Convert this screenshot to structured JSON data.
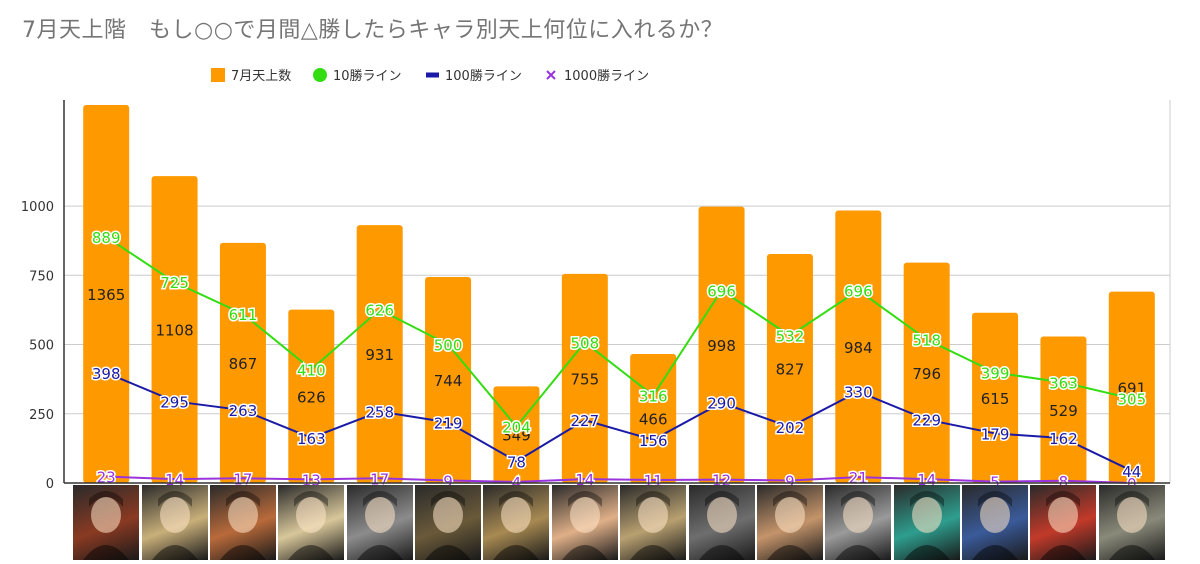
{
  "chart_data": {
    "type": "bar",
    "title": "7月天上階　もし○○で月間△勝したらキャラ別天上何位に入れるか？",
    "xlabel": "",
    "ylabel": "",
    "ylim": [
      0,
      1365
    ],
    "yticks": [
      0,
      250,
      500,
      750,
      1000
    ],
    "grid": true,
    "legend_position": "top",
    "categories": [
      "",
      "",
      "",
      "",
      "",
      "",
      "",
      "",
      "",
      "",
      "",
      "",
      "",
      "",
      "",
      ""
    ],
    "series": [
      {
        "name": "7月天上数",
        "type": "bar",
        "color": "#ff9900",
        "values": [
          1365,
          1108,
          867,
          626,
          931,
          744,
          349,
          755,
          466,
          998,
          827,
          984,
          796,
          615,
          529,
          691
        ]
      },
      {
        "name": "10勝ライン",
        "type": "line",
        "color": "#33dd11",
        "marker": "circle",
        "values": [
          889,
          725,
          611,
          410,
          626,
          500,
          204,
          508,
          316,
          696,
          532,
          696,
          518,
          399,
          363,
          305
        ]
      },
      {
        "name": "100勝ライン",
        "type": "line",
        "color": "#1a1aa6",
        "marker": "dash",
        "values": [
          398,
          295,
          263,
          163,
          258,
          219,
          78,
          227,
          156,
          290,
          202,
          330,
          229,
          179,
          162,
          44
        ]
      },
      {
        "name": "1000勝ライン",
        "type": "line",
        "color": "#9933dd",
        "marker": "x",
        "values": [
          23,
          14,
          17,
          13,
          17,
          9,
          4,
          14,
          11,
          12,
          9,
          21,
          14,
          5,
          8,
          0
        ]
      }
    ],
    "portrait_colors": [
      "#8a3a22",
      "#c9b07a",
      "#b96a3a",
      "#d8c79a",
      "#8c8c8c",
      "#6a5a3a",
      "#a88a52",
      "#e0b088",
      "#b8a070",
      "#6e6e6e",
      "#c4946a",
      "#9a9a9a",
      "#2e9e8e",
      "#3a5a9a",
      "#c23a2a",
      "#8a8a7a"
    ]
  }
}
